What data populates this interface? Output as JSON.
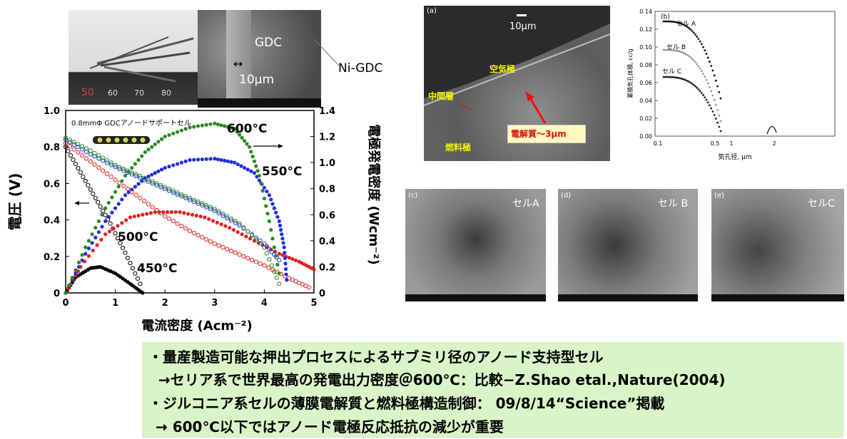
{
  "photo_rod": {
    "ruler_numbers": [
      "50",
      "60",
      "70",
      "80"
    ]
  },
  "photo_sem_top": {
    "gdc_label": "GDC",
    "scale_label": "10μm",
    "ni_gdc_label": "Ni-GDC"
  },
  "sem_cross": {
    "panel_letter": "(a)",
    "scale_label": "10μm",
    "air_electrode": "空気極",
    "middle_layer": "中間層",
    "fuel_electrode": "燃料極",
    "electrolyte": "電解質～3μm"
  },
  "pore_chart": {
    "panel_letter": "(b)",
    "ylabel": "累積気孔体積, cc/g",
    "xlabel": "気孔径, μm",
    "yticks": [
      "0.14",
      "0.12",
      "0.10",
      "0.08",
      "0.06",
      "0.04",
      "0.02",
      "0.00"
    ],
    "xticks": [
      "0.1",
      "0.5",
      "1",
      "2"
    ],
    "series_labels": [
      "セル A",
      "セル B",
      "セル C"
    ]
  },
  "sem_panels": [
    {
      "letter": "(c)",
      "label": "セルA"
    },
    {
      "letter": "(d)",
      "label": "セル B"
    },
    {
      "letter": "(e)",
      "label": "セルC"
    }
  ],
  "chart_data": {
    "type": "scatter",
    "annotation": "0.8mmΦ GDCアノードサポートセル",
    "xlabel": "電流密度 (Acm⁻²)",
    "ylabel_left": "電圧 (V)",
    "ylabel_right": "電極発電密度 (Wcm⁻²)",
    "xlim": [
      0,
      5
    ],
    "ylim_left": [
      0,
      1.0
    ],
    "ylim_right": [
      0,
      1.4
    ],
    "xticks": [
      "0",
      "1",
      "2",
      "3",
      "4",
      "5"
    ],
    "yticks_left": [
      "0",
      "0.2",
      "0.4",
      "0.6",
      "0.8",
      "1.0"
    ],
    "yticks_right": [
      "0",
      "0.2",
      "0.4",
      "0.6",
      "0.8",
      "1.0",
      "1.2",
      "1.4"
    ],
    "series": [
      {
        "name": "450°C",
        "color": "#000000",
        "voltage": [
          [
            0,
            0.8
          ],
          [
            0.3,
            0.66
          ],
          [
            0.6,
            0.52
          ],
          [
            0.9,
            0.38
          ],
          [
            1.2,
            0.22
          ],
          [
            1.5,
            0.05
          ]
        ],
        "power": [
          [
            0,
            0.0
          ],
          [
            0.2,
            0.12
          ],
          [
            0.5,
            0.19
          ],
          [
            0.7,
            0.2
          ],
          [
            1.0,
            0.15
          ],
          [
            1.3,
            0.07
          ],
          [
            1.55,
            0.0
          ]
        ]
      },
      {
        "name": "500°C",
        "color": "#e02020",
        "voltage": [
          [
            0,
            0.82
          ],
          [
            0.5,
            0.72
          ],
          [
            1.0,
            0.62
          ],
          [
            1.5,
            0.52
          ],
          [
            2.0,
            0.42
          ],
          [
            2.5,
            0.34
          ],
          [
            3.0,
            0.27
          ],
          [
            3.5,
            0.21
          ],
          [
            4.0,
            0.15
          ],
          [
            4.5,
            0.08
          ],
          [
            4.9,
            0.03
          ]
        ],
        "power": [
          [
            0,
            0.0
          ],
          [
            0.3,
            0.2
          ],
          [
            0.8,
            0.45
          ],
          [
            1.3,
            0.58
          ],
          [
            1.8,
            0.62
          ],
          [
            2.3,
            0.62
          ],
          [
            2.8,
            0.58
          ],
          [
            3.3,
            0.5
          ],
          [
            3.8,
            0.4
          ],
          [
            4.3,
            0.3
          ],
          [
            4.7,
            0.24
          ],
          [
            5.0,
            0.18
          ]
        ]
      },
      {
        "name": "550°C",
        "color": "#1f2ee0",
        "voltage": [
          [
            0,
            0.84
          ],
          [
            0.5,
            0.76
          ],
          [
            1.0,
            0.69
          ],
          [
            1.5,
            0.63
          ],
          [
            2.0,
            0.57
          ],
          [
            2.5,
            0.51
          ],
          [
            3.0,
            0.45
          ],
          [
            3.5,
            0.37
          ],
          [
            4.0,
            0.27
          ],
          [
            4.3,
            0.18
          ]
        ],
        "power": [
          [
            0,
            0.0
          ],
          [
            0.4,
            0.3
          ],
          [
            0.8,
            0.55
          ],
          [
            1.2,
            0.75
          ],
          [
            1.6,
            0.88
          ],
          [
            2.0,
            0.96
          ],
          [
            2.5,
            1.02
          ],
          [
            3.0,
            1.03
          ],
          [
            3.4,
            1.0
          ],
          [
            3.8,
            0.92
          ],
          [
            4.1,
            0.75
          ],
          [
            4.3,
            0.55
          ],
          [
            4.4,
            0.35
          ],
          [
            4.45,
            0.1
          ]
        ]
      },
      {
        "name": "600°C",
        "color": "#2a8a1e",
        "voltage": [
          [
            0,
            0.85
          ],
          [
            0.5,
            0.78
          ],
          [
            1.0,
            0.7
          ],
          [
            1.5,
            0.64
          ],
          [
            2.0,
            0.58
          ],
          [
            2.5,
            0.52
          ],
          [
            3.0,
            0.46
          ],
          [
            3.5,
            0.38
          ],
          [
            4.0,
            0.25
          ],
          [
            4.3,
            0.05
          ]
        ],
        "power": [
          [
            0,
            0.0
          ],
          [
            0.4,
            0.35
          ],
          [
            0.8,
            0.65
          ],
          [
            1.2,
            0.9
          ],
          [
            1.6,
            1.08
          ],
          [
            2.0,
            1.2
          ],
          [
            2.5,
            1.27
          ],
          [
            3.0,
            1.3
          ],
          [
            3.4,
            1.26
          ],
          [
            3.7,
            1.12
          ],
          [
            3.9,
            0.9
          ],
          [
            4.1,
            0.55
          ],
          [
            4.3,
            0.15
          ]
        ]
      }
    ]
  },
  "bottom_text": [
    "・量産製造可能な押出プロセスによるサブミリ径のアノード支持型セル",
    "→セリア系で世界最高の発電出力密度＠600℃：比較−Z.Shao etal.,Nature(2004)",
    "・ジルコニア系セルの薄膜電解質と燃料極構造制御： 09/8/14“Science”掲載",
    "→ 600℃以下ではアノード電極反応抵抗の減少が重要"
  ]
}
